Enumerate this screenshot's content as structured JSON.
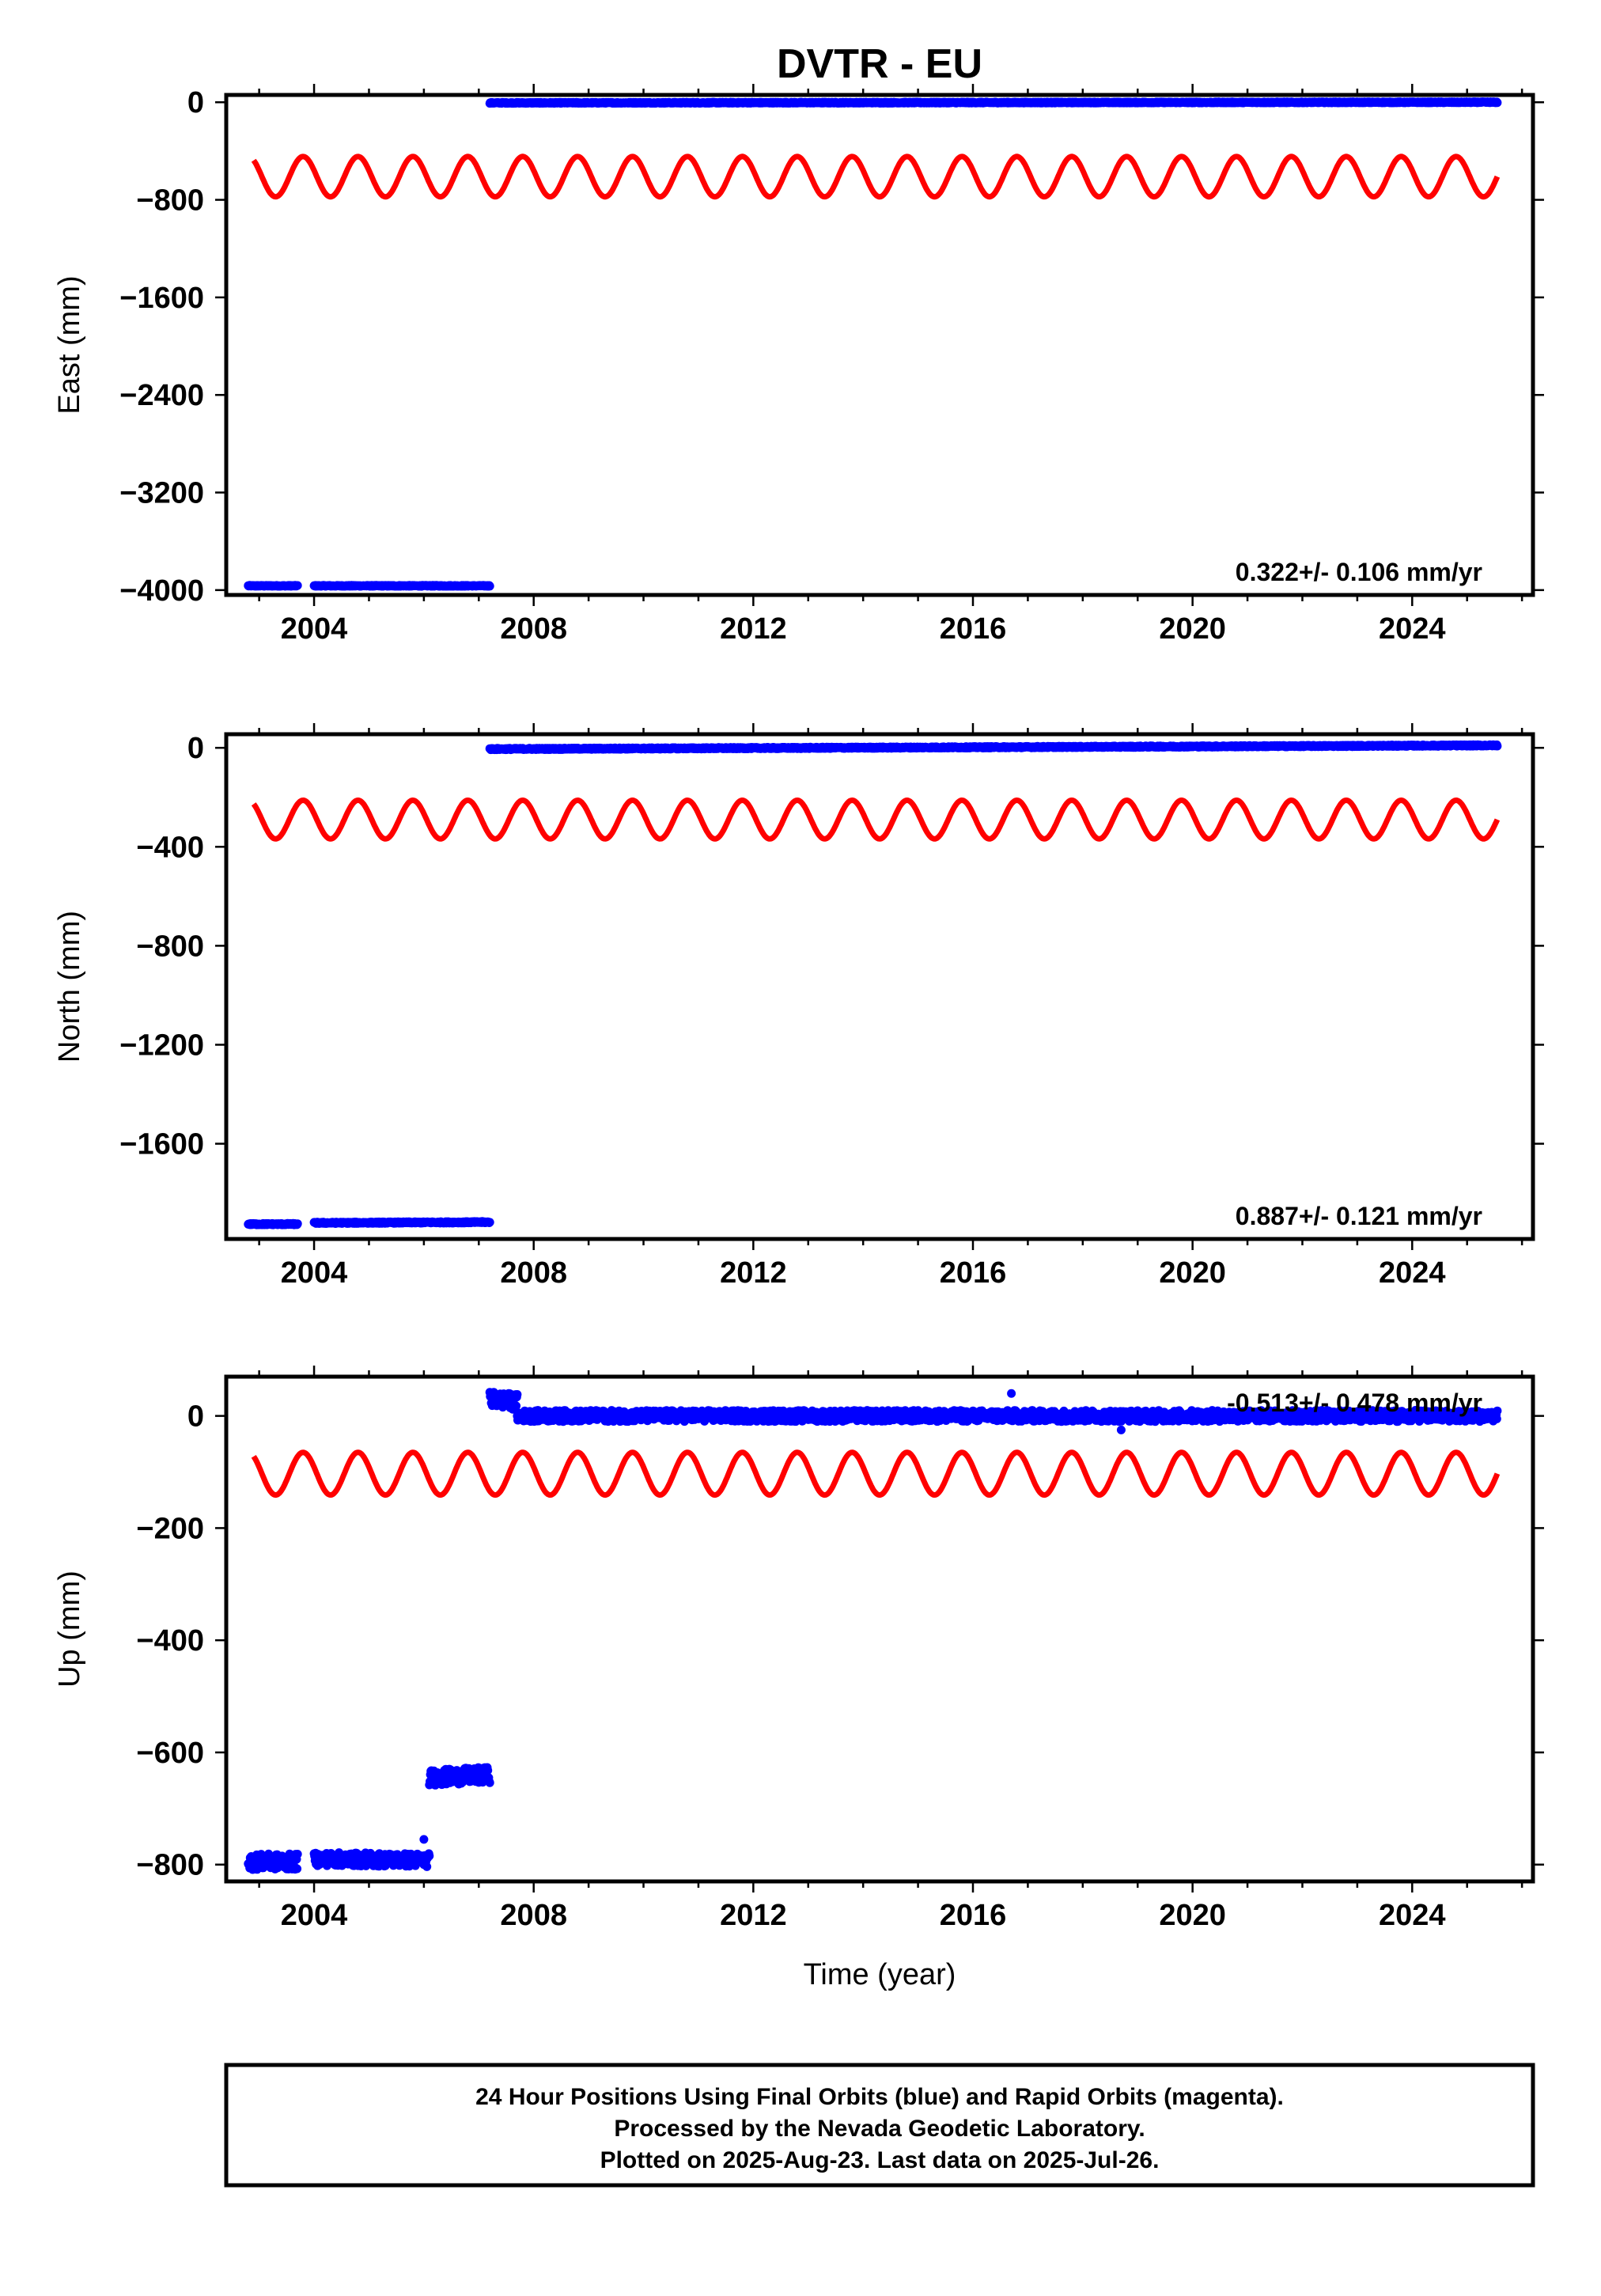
{
  "title": "DVTR - EU",
  "xlabel": "Time (year)",
  "footer": [
    "24 Hour Positions Using Final Orbits (blue) and Rapid Orbits (magenta).",
    "Processed by the Nevada Geodetic Laboratory.",
    "Plotted on 2025-Aug-23. Last data on 2025-Jul-26."
  ],
  "colors": {
    "final_orbits": "#0000ff",
    "seasonal_model": "#ff0000",
    "axes": "#000000"
  },
  "chart_data": [
    {
      "type": "scatter",
      "component": "east",
      "ylabel": "East (mm)",
      "rate": "0.322+/- 0.106 mm/yr",
      "xlim": [
        2002.4,
        2026.2
      ],
      "ylim": [
        -4040,
        60
      ],
      "xticks": [
        2004,
        2008,
        2012,
        2016,
        2020,
        2024
      ],
      "yticks": [
        0,
        -800,
        -1600,
        -2400,
        -3200,
        -4000
      ],
      "grid": false,
      "series": [
        {
          "color": "#0000ff",
          "segments": [
            {
              "x": [
                2002.8,
                2003.7
              ],
              "y": [
                -3965,
                -3965
              ],
              "scatter": 4
            },
            {
              "x": [
                2004.0,
                2007.2
              ],
              "y": [
                -3965,
                -3965
              ],
              "scatter": 4
            },
            {
              "x": [
                2007.2,
                2025.55
              ],
              "y": [
                -5,
                0
              ],
              "scatter": 4
            }
          ]
        },
        {
          "color": "#ff0000",
          "model": "seasonal",
          "x": [
            2002.9,
            2025.55
          ],
          "center": -610,
          "amplitude": 165,
          "period": 1.0,
          "phase": 0.8
        }
      ]
    },
    {
      "type": "scatter",
      "component": "north",
      "ylabel": "North (mm)",
      "rate": "0.887+/- 0.121 mm/yr",
      "xlim": [
        2002.4,
        2026.2
      ],
      "ylim": [
        -1985,
        55
      ],
      "xticks": [
        2004,
        2008,
        2012,
        2016,
        2020,
        2024
      ],
      "yticks": [
        0,
        -400,
        -800,
        -1200,
        -1600
      ],
      "grid": false,
      "series": [
        {
          "color": "#0000ff",
          "segments": [
            {
              "x": [
                2002.8,
                2003.7
              ],
              "y": [
                -1925,
                -1925
              ],
              "scatter": 3
            },
            {
              "x": [
                2004.0,
                2007.2
              ],
              "y": [
                -1920,
                -1917
              ],
              "scatter": 3
            },
            {
              "x": [
                2007.2,
                2025.55
              ],
              "y": [
                -5,
                10
              ],
              "scatter": 3
            }
          ]
        },
        {
          "color": "#ff0000",
          "model": "seasonal",
          "x": [
            2002.9,
            2025.55
          ],
          "center": -290,
          "amplitude": 78,
          "period": 1.0,
          "phase": 0.8
        }
      ]
    },
    {
      "type": "scatter",
      "component": "up",
      "ylabel": "Up (mm)",
      "rate": "-0.513+/- 0.478 mm/yr",
      "xlim": [
        2002.4,
        2026.2
      ],
      "ylim": [
        -830,
        70
      ],
      "xticks": [
        2004,
        2008,
        2012,
        2016,
        2020,
        2024
      ],
      "yticks": [
        0,
        -200,
        -400,
        -600,
        -800
      ],
      "grid": false,
      "series": [
        {
          "color": "#0000ff",
          "segments": [
            {
              "x": [
                2002.8,
                2003.7
              ],
              "y": [
                -795,
                -795
              ],
              "scatter": 14
            },
            {
              "x": [
                2004.0,
                2006.1
              ],
              "y": [
                -790,
                -792
              ],
              "scatter": 12
            },
            {
              "x": [
                2006.1,
                2007.2
              ],
              "y": [
                -645,
                -640
              ],
              "scatter": 14
            },
            {
              "x": [
                2007.2,
                2007.7
              ],
              "y": [
                30,
                25
              ],
              "scatter": 14
            },
            {
              "x": [
                2007.7,
                2025.55
              ],
              "y": [
                0,
                0
              ],
              "scatter": 10
            }
          ],
          "outliers": [
            {
              "x": 2016.7,
              "y": 40
            },
            {
              "x": 2006.0,
              "y": -755
            },
            {
              "x": 2018.7,
              "y": -25
            }
          ]
        },
        {
          "color": "#ff0000",
          "model": "seasonal",
          "x": [
            2002.9,
            2025.55
          ],
          "center": -103,
          "amplitude": 38,
          "period": 1.0,
          "phase": 0.8
        }
      ]
    }
  ]
}
